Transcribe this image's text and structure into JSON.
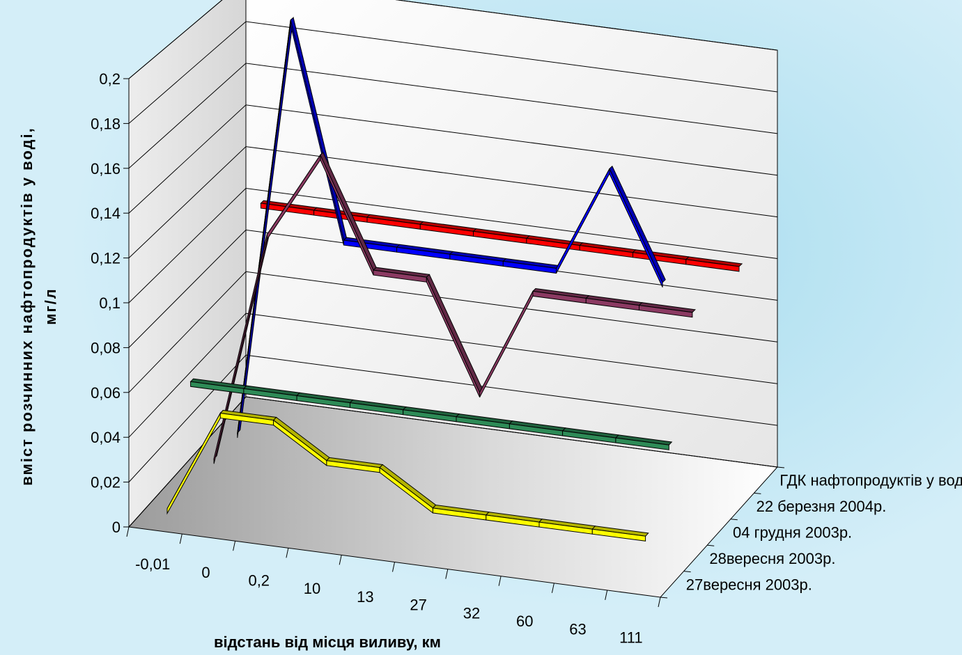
{
  "chart_data": {
    "type": "line",
    "title": "",
    "ylabel_line1": "вміст розчинних нафтопродуктів у воді,",
    "ylabel_line2": "мг/л",
    "xlabel": "відстань від місця виливу, км",
    "categories": [
      "-0,01",
      "0",
      "0,2",
      "10",
      "13",
      "27",
      "32",
      "60",
      "63",
      "111"
    ],
    "y_ticks": [
      "0",
      "0,02",
      "0,04",
      "0,06",
      "0,08",
      "0,1",
      "0,12",
      "0,14",
      "0,16",
      "0,18",
      "0,2"
    ],
    "ylim": [
      0,
      0.2
    ],
    "grid": true,
    "series": [
      {
        "name": "27вересня 2003р.",
        "color": "#ffff00",
        "values": [
          0.004,
          0.05,
          0.05,
          0.035,
          0.035,
          0.02,
          0.02,
          0.02,
          0.02,
          0.02
        ]
      },
      {
        "name": "28вересня 2003р.",
        "color": "#2e8b57",
        "values": [
          0.05,
          0.05,
          0.05,
          0.05,
          0.05,
          0.05,
          0.05,
          0.05,
          0.05,
          0.05
        ]
      },
      {
        "name": "04 грудня 2003р.",
        "color": "#8b3a62",
        "values": [
          0.003,
          0.11,
          0.15,
          0.1,
          0.1,
          0.05,
          0.1,
          0.1,
          0.1,
          0.1
        ]
      },
      {
        "name": "22 березня 2004р.",
        "color": "#0000ff",
        "values": [
          0.003,
          0.2,
          0.1,
          0.1,
          0.1,
          0.1,
          0.1,
          0.15,
          0.1,
          null
        ]
      },
      {
        "name": "ГДК нафтопродуктів у воді",
        "color": "#ff0000",
        "values": [
          0.1,
          0.1,
          0.1,
          0.1,
          0.1,
          0.1,
          0.1,
          0.1,
          0.1,
          0.1
        ]
      }
    ]
  }
}
